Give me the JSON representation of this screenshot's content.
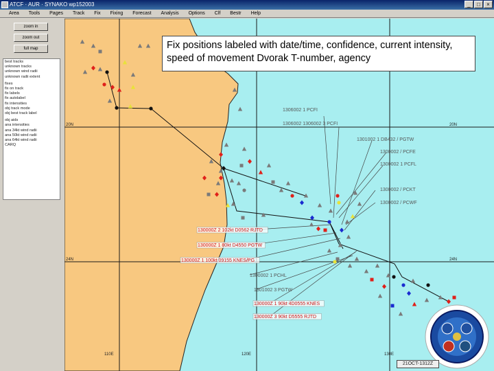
{
  "window": {
    "title": "ATCF · AUR · SYNAKO wp152003",
    "minimize_glyph": "_",
    "maximize_glyph": "□",
    "close_glyph": "×"
  },
  "menu": [
    "Area",
    "Tools",
    "Pages",
    "Track",
    "Fix",
    "Fixing",
    "Forecast",
    "Analysis",
    "Options",
    "Clf",
    "Bestr",
    "Help"
  ],
  "side_buttons": [
    "zoom in",
    "zoom out",
    "full map"
  ],
  "layers": [
    "best tracks",
    "unknown tracks",
    "unknown wind radii",
    "unknown radii extent",
    "fixes",
    "fix on track",
    "fix labels",
    "fix autolabel",
    "fix intensities",
    "obj track mode",
    "obj best track label",
    "obj aids",
    "ana intensities",
    "ana 34kt wind radii",
    "ana 50kt wind radii",
    "ana 64kt wind radii",
    "CARQ"
  ],
  "annotation": "Fix positions labeled with date/time, confidence, current intensity, speed of movement Dvorak T-number, agency",
  "date_readout": "21OCT-1312Z",
  "colors": {
    "ocean": "#a8eef0",
    "land": "#f8c880",
    "coast": "#222222",
    "grid": "#1a1a1a",
    "fix_red": "#e0201a",
    "fix_blue": "#1a2ad0",
    "fix_gray": "#7a7a7a",
    "fix_yellow": "#e8e23a",
    "label_red": "#d01010",
    "label_gray": "#555555"
  },
  "grid_labels": {
    "lat": [
      "20N",
      "20N",
      "24N",
      "24N"
    ],
    "lon": [
      "110E",
      "120E",
      "130E"
    ]
  },
  "fix_labels": [
    {
      "text": "1306002 1 PCFI",
      "color": "gray"
    },
    {
      "text": "1306002 1306002 3 PCFI",
      "color": "gray"
    },
    {
      "text": "1301002 1 DB432 / PGTW",
      "color": "gray"
    },
    {
      "text": "1300002 / PCFE",
      "color": "gray"
    },
    {
      "text": "1300002 1 PCFL",
      "color": "gray"
    },
    {
      "text": "1300002 / PCKT",
      "color": "gray"
    },
    {
      "text": "1300002 / PCWF",
      "color": "gray"
    },
    {
      "text": "130000Z 2 102kt D0562 RJTD",
      "color": "red"
    },
    {
      "text": "130000Z 1 80kt D4550 PGTW",
      "color": "red"
    },
    {
      "text": "130000Z 1 100kt 09155 KNES/PG",
      "color": "red"
    },
    {
      "text": "1300002 1 PCHL",
      "color": "gray"
    },
    {
      "text": "1301002 3 PGTW",
      "color": "gray"
    },
    {
      "text": "130000Z 1 90kt 4D0555 KNES",
      "color": "red"
    },
    {
      "text": "130000Z 3 90kt D5555 RJTD",
      "color": "red"
    }
  ],
  "logo": {
    "text": "JOINT TYPHOON WARNING CENTER"
  }
}
